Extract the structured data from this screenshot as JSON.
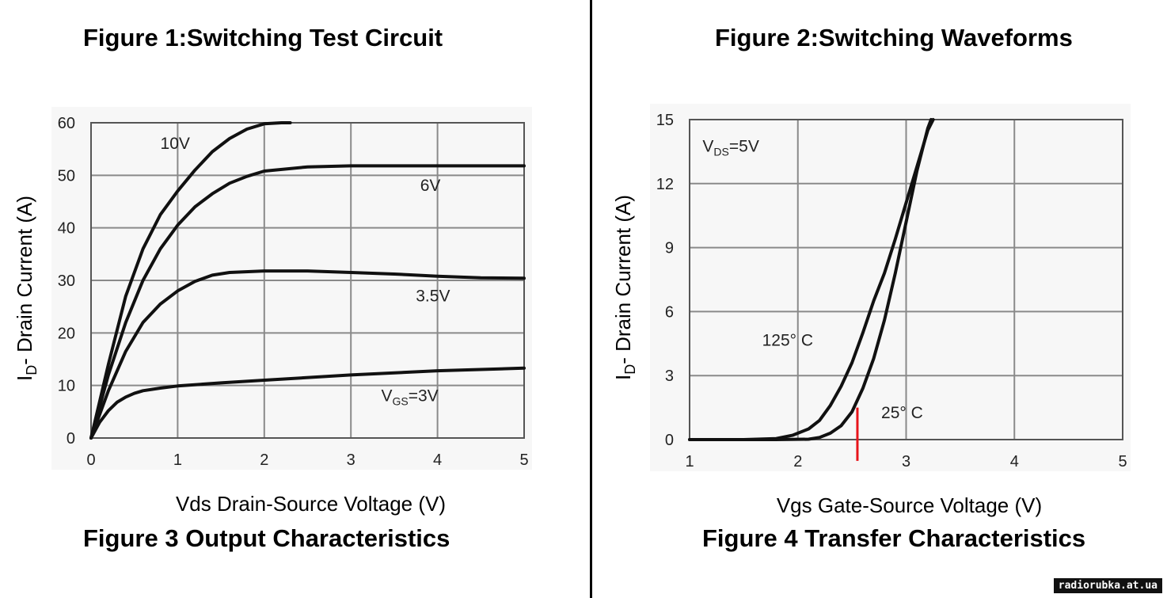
{
  "titles": {
    "fig1": "Figure 1:Switching Test Circuit",
    "fig2": "Figure 2:Switching Waveforms",
    "fig3": "Figure 3 Output Characteristics",
    "fig4": "Figure 4 Transfer Characteristics"
  },
  "watermark": "radiorubka.at.ua",
  "chart_data": [
    {
      "type": "line",
      "title": "Figure 3 Output Characteristics",
      "xlabel": "Vds Drain-Source Voltage (V)",
      "ylabel_main": "I",
      "ylabel_sub": "D",
      "ylabel_rest": "- Drain Current (A)",
      "xlim": [
        0,
        5
      ],
      "ylim": [
        0,
        60
      ],
      "xticks": [
        "0",
        "1",
        "2",
        "3",
        "4",
        "5"
      ],
      "yticks": [
        "0",
        "10",
        "20",
        "30",
        "40",
        "50",
        "60"
      ],
      "grid": true,
      "series": [
        {
          "name": "10V",
          "x": [
            0,
            0.2,
            0.4,
            0.6,
            0.8,
            1.0,
            1.2,
            1.4,
            1.6,
            1.8,
            2.0,
            2.2,
            2.3
          ],
          "y": [
            0,
            14,
            27,
            36,
            42.5,
            47,
            51,
            54.5,
            57,
            58.8,
            59.8,
            60,
            60
          ]
        },
        {
          "name": "6V",
          "x": [
            0,
            0.2,
            0.4,
            0.6,
            0.8,
            1.0,
            1.2,
            1.4,
            1.6,
            1.8,
            2.0,
            2.5,
            3.0,
            3.5,
            4.0,
            4.5,
            5.0
          ],
          "y": [
            0,
            12,
            22,
            30,
            36,
            40.5,
            44,
            46.5,
            48.5,
            49.8,
            50.8,
            51.6,
            51.8,
            51.8,
            51.8,
            51.8,
            51.8
          ]
        },
        {
          "name": "3.5V",
          "x": [
            0,
            0.2,
            0.4,
            0.6,
            0.8,
            1.0,
            1.2,
            1.4,
            1.6,
            2.0,
            2.5,
            3.0,
            3.5,
            4.0,
            4.5,
            5.0
          ],
          "y": [
            0,
            9,
            16.5,
            22,
            25.5,
            28,
            29.8,
            31,
            31.5,
            31.8,
            31.8,
            31.5,
            31.2,
            30.8,
            30.5,
            30.4
          ]
        },
        {
          "name": "VGS=3V",
          "x": [
            0,
            0.1,
            0.2,
            0.3,
            0.4,
            0.5,
            0.6,
            0.8,
            1.0,
            1.5,
            2.0,
            3.0,
            4.0,
            5.0
          ],
          "y": [
            0,
            3,
            5.2,
            6.8,
            7.8,
            8.5,
            9,
            9.5,
            9.9,
            10.5,
            11,
            12,
            12.8,
            13.3
          ]
        }
      ],
      "annotations": [
        {
          "text": "10V",
          "x": 0.8,
          "y": 55
        },
        {
          "text": "6V",
          "x": 3.8,
          "y": 47
        },
        {
          "text": "3.5V",
          "x": 3.75,
          "y": 26
        },
        {
          "text_main": "V",
          "text_sub": "GS",
          "text_rest": "=3V",
          "x": 3.35,
          "y": 7
        }
      ]
    },
    {
      "type": "line",
      "title": "Figure 4 Transfer Characteristics",
      "xlabel": "Vgs Gate-Source Voltage (V)",
      "ylabel_main": "I",
      "ylabel_sub": "D",
      "ylabel_rest": "- Drain Current (A)",
      "xlim": [
        1,
        5
      ],
      "ylim": [
        0,
        15
      ],
      "xticks": [
        "1",
        "2",
        "3",
        "4",
        "5"
      ],
      "yticks": [
        "0",
        "3",
        "6",
        "9",
        "12",
        "15"
      ],
      "grid": true,
      "series": [
        {
          "name": "125° C",
          "x": [
            1,
            1.5,
            1.8,
            1.95,
            2.1,
            2.2,
            2.3,
            2.4,
            2.5,
            2.6,
            2.7,
            2.8,
            2.9,
            3.0,
            3.1,
            3.2,
            3.25
          ],
          "y": [
            0,
            0,
            0.05,
            0.2,
            0.5,
            0.9,
            1.6,
            2.5,
            3.6,
            5.0,
            6.5,
            7.8,
            9.4,
            11.1,
            12.8,
            14.5,
            15
          ]
        },
        {
          "name": "25° C",
          "x": [
            1,
            1.8,
            2.1,
            2.2,
            2.3,
            2.4,
            2.5,
            2.6,
            2.7,
            2.8,
            2.9,
            3.0,
            3.1,
            3.2,
            3.23
          ],
          "y": [
            0,
            0,
            0.02,
            0.1,
            0.3,
            0.65,
            1.3,
            2.4,
            3.8,
            5.6,
            7.8,
            10.2,
            12.6,
            14.6,
            15
          ]
        }
      ],
      "annotations": [
        {
          "text_main": "V",
          "text_sub": "DS",
          "text_rest": "=5V",
          "x": 1.12,
          "y": 13.5
        },
        {
          "text": "125° C",
          "x": 1.67,
          "y": 4.4
        },
        {
          "text": "25° C",
          "x": 2.77,
          "y": 1.0
        }
      ],
      "marker": {
        "x": 2.55,
        "y_from": 1.5,
        "y_to": -1.0,
        "color": "#e8141a"
      }
    }
  ]
}
